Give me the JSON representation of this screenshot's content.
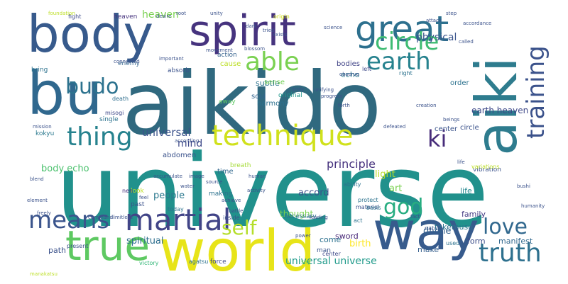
{
  "words": [
    {
      "text": "universe",
      "color": "#21918c"
    },
    {
      "text": "aikido",
      "color": "#30697f"
    },
    {
      "text": "world",
      "color": "#e7e419"
    },
    {
      "text": "aiki",
      "color": "#2e7c8e"
    },
    {
      "text": "body",
      "color": "#375a8c"
    },
    {
      "text": "way",
      "color": "#375b8d"
    },
    {
      "text": "bu",
      "color": "#30688e"
    },
    {
      "text": "spirit",
      "color": "#46337e"
    },
    {
      "text": "true",
      "color": "#5ec962"
    },
    {
      "text": "technique",
      "color": "#d0e11c"
    },
    {
      "text": "great",
      "color": "#2d708e"
    },
    {
      "text": "martial",
      "color": "#414487"
    },
    {
      "text": "circle",
      "color": "#3fbc73"
    },
    {
      "text": "earth",
      "color": "#26828e"
    },
    {
      "text": "training",
      "color": "#3b528b"
    },
    {
      "text": "able",
      "color": "#7ad151"
    },
    {
      "text": "thing",
      "color": "#26828e"
    },
    {
      "text": "truth",
      "color": "#2d708e"
    },
    {
      "text": "love",
      "color": "#31688e"
    },
    {
      "text": "means",
      "color": "#3a548c"
    },
    {
      "text": "self",
      "color": "#b5de2b"
    },
    {
      "text": "god",
      "color": "#27ad81"
    },
    {
      "text": "budo",
      "color": "#2c728e"
    },
    {
      "text": "ki",
      "color": "#472c7a"
    },
    {
      "text": "principle",
      "color": "#46327e"
    },
    {
      "text": "universal",
      "color": "#3b528b"
    },
    {
      "text": "universal universe",
      "color": "#1f9a8a"
    },
    {
      "text": "heaven",
      "color": "#7ad151"
    },
    {
      "text": "physical",
      "color": "#3a548c"
    },
    {
      "text": "mind",
      "color": "#3e4989"
    },
    {
      "text": "body echo",
      "color": "#4ac16d"
    },
    {
      "text": "spiritual",
      "color": "#2e6e8e"
    },
    {
      "text": "divine",
      "color": "#34618d"
    },
    {
      "text": "people",
      "color": "#2a788e"
    },
    {
      "text": "accord",
      "color": "#3b518b"
    },
    {
      "text": "light",
      "color": "#b8de29"
    },
    {
      "text": "birth",
      "color": "#fde725"
    },
    {
      "text": "art",
      "color": "#7ad151"
    },
    {
      "text": "earth heaven",
      "color": "#3e4989"
    },
    {
      "text": "center",
      "color": "#3a538b"
    },
    {
      "text": "circle",
      "color": "#3b528b"
    },
    {
      "text": "thought",
      "color": "#7ad151"
    },
    {
      "text": "form",
      "color": "#3d4e8a"
    },
    {
      "text": "make",
      "color": "#355f8d"
    },
    {
      "text": "manifest",
      "color": "#31688e"
    },
    {
      "text": "life",
      "color": "#24878e"
    },
    {
      "text": "family",
      "color": "#443983"
    },
    {
      "text": "takemusu",
      "color": "#2c728e"
    },
    {
      "text": "sword",
      "color": "#482878"
    },
    {
      "text": "come",
      "color": "#2c718e"
    },
    {
      "text": "path",
      "color": "#3b528b"
    },
    {
      "text": "echo",
      "color": "#2a788e"
    },
    {
      "text": "subtle",
      "color": "#2c728e"
    },
    {
      "text": "bodies",
      "color": "#414487"
    },
    {
      "text": "order",
      "color": "#2c728e"
    },
    {
      "text": "soul",
      "color": "#32648e"
    },
    {
      "text": "sense",
      "color": "#73d056"
    },
    {
      "text": "cause",
      "color": "#bddf26"
    },
    {
      "text": "harmony",
      "color": "#2d708e"
    },
    {
      "text": "original",
      "color": "#1f968b"
    },
    {
      "text": "away",
      "color": "#5ec962"
    },
    {
      "text": "time",
      "color": "#31688e"
    },
    {
      "text": "breath",
      "color": "#a5db36"
    },
    {
      "text": "making",
      "color": "#2c728e"
    },
    {
      "text": "heaven",
      "color": "#46337e"
    },
    {
      "text": "abdomen",
      "color": "#3b528b"
    },
    {
      "text": "action",
      "color": "#34618d"
    },
    {
      "text": "kokyu",
      "color": "#2a788e"
    },
    {
      "text": "single",
      "color": "#2c728e"
    },
    {
      "text": "enemy",
      "color": "#32648e"
    },
    {
      "text": "absorb",
      "color": "#3b528b"
    },
    {
      "text": "fight",
      "color": "#3e4c8a"
    },
    {
      "text": "origin",
      "color": "#d2e21b"
    },
    {
      "text": "bring",
      "color": "#2c728e"
    },
    {
      "text": "misogi",
      "color": "#3e4989"
    },
    {
      "text": "death",
      "color": "#2e6e8e"
    },
    {
      "text": "past",
      "color": "#3b528b"
    },
    {
      "text": "look",
      "color": "#bddf26"
    },
    {
      "text": "nen",
      "color": "#46307e"
    },
    {
      "text": "force",
      "color": "#3e4989"
    },
    {
      "text": "man",
      "color": "#3a538b"
    },
    {
      "text": "say",
      "color": "#7ad151"
    },
    {
      "text": "necessary",
      "color": "#2c728e"
    },
    {
      "text": "agatsu",
      "color": "#2c728e"
    },
    {
      "text": "center",
      "color": "#3e4989"
    },
    {
      "text": "victory",
      "color": "#35b779"
    },
    {
      "text": "today",
      "color": "#2c728e"
    },
    {
      "text": "left",
      "color": "#3e4989"
    },
    {
      "text": "right",
      "color": "#2c728e"
    },
    {
      "text": "vibration",
      "color": "#3b528b"
    },
    {
      "text": "protect",
      "color": "#2c728e"
    },
    {
      "text": "material",
      "color": "#3b528b"
    },
    {
      "text": "ability",
      "color": "#2c728e"
    },
    {
      "text": "act",
      "color": "#2c728e"
    },
    {
      "text": "basis",
      "color": "#2c728e"
    },
    {
      "text": "present",
      "color": "#3b528b"
    },
    {
      "text": "inside",
      "color": "#3b528b"
    },
    {
      "text": "used",
      "color": "#2c728e"
    },
    {
      "text": "nature",
      "color": "#3b528b"
    },
    {
      "text": "unity",
      "color": "#3b528b"
    },
    {
      "text": "root",
      "color": "#3b528b"
    },
    {
      "text": "foundation",
      "color": "#bddf26"
    },
    {
      "text": "step",
      "color": "#3b528b"
    },
    {
      "text": "accordance",
      "color": "#3b528b"
    },
    {
      "text": "called",
      "color": "#3b528b"
    },
    {
      "text": "science",
      "color": "#3b528b"
    },
    {
      "text": "exists",
      "color": "#3b528b"
    },
    {
      "text": "movement",
      "color": "#3b528b"
    },
    {
      "text": "connected",
      "color": "#3b528b"
    },
    {
      "text": "important",
      "color": "#3b528b"
    },
    {
      "text": "truly",
      "color": "#3b528b"
    },
    {
      "text": "unifying",
      "color": "#3b528b"
    },
    {
      "text": "progress",
      "color": "#3b528b"
    },
    {
      "text": "forth",
      "color": "#3b528b"
    },
    {
      "text": "creation",
      "color": "#3b528b"
    },
    {
      "text": "beings",
      "color": "#3b528b"
    },
    {
      "text": "defeated",
      "color": "#3b528b"
    },
    {
      "text": "mission",
      "color": "#3b528b"
    },
    {
      "text": "blend",
      "color": "#3b528b"
    },
    {
      "text": "element",
      "color": "#3b528b"
    },
    {
      "text": "freely",
      "color": "#3b528b"
    },
    {
      "text": "command",
      "color": "#3b528b"
    },
    {
      "text": "limitless",
      "color": "#3b528b"
    },
    {
      "text": "fact",
      "color": "#3b528b"
    },
    {
      "text": "battle",
      "color": "#3b528b"
    },
    {
      "text": "according",
      "color": "#3b528b"
    },
    {
      "text": "image",
      "color": "#3b528b"
    },
    {
      "text": "human",
      "color": "#3b528b"
    },
    {
      "text": "activity",
      "color": "#3b528b"
    },
    {
      "text": "source",
      "color": "#3b528b"
    },
    {
      "text": "water",
      "color": "#3b528b"
    },
    {
      "text": "achieve",
      "color": "#3b528b"
    },
    {
      "text": "accumulate",
      "color": "#3b528b"
    },
    {
      "text": "bushi",
      "color": "#3b528b"
    },
    {
      "text": "humanity",
      "color": "#3b528b"
    },
    {
      "text": "dark",
      "color": "#3b528b"
    },
    {
      "text": "attack",
      "color": "#3b528b"
    },
    {
      "text": "tried",
      "color": "#3b528b"
    },
    {
      "text": "blossom",
      "color": "#3b528b"
    },
    {
      "text": "observe",
      "color": "#3b528b"
    },
    {
      "text": "desire",
      "color": "#3b528b"
    },
    {
      "text": "power",
      "color": "#3b528b"
    },
    {
      "text": "life",
      "color": "#3b528b"
    },
    {
      "text": "manakatsu",
      "color": "#bddf26"
    },
    {
      "text": "feel",
      "color": "#3b528b"
    },
    {
      "text": "leading",
      "color": "#3b528b"
    },
    {
      "text": "variations",
      "color": "#bddf26"
    }
  ]
}
